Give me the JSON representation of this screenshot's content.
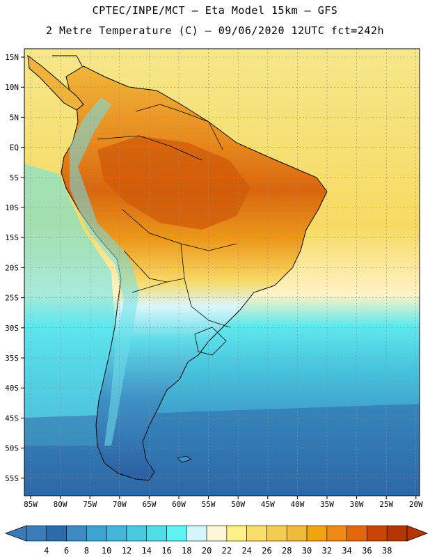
{
  "header": {
    "line1": "CPTEC/INPE/MCT –  Eta Model 15km – GFS",
    "line2": "2 Metre Temperature (C) – 09/06/2020 12UTC fct=242h"
  },
  "map": {
    "lat_labels": [
      "15N",
      "10N",
      "5N",
      "EQ",
      "5S",
      "10S",
      "15S",
      "20S",
      "25S",
      "30S",
      "35S",
      "40S",
      "45S",
      "50S",
      "55S"
    ],
    "lon_labels": [
      "85W",
      "80W",
      "75W",
      "70W",
      "65W",
      "60W",
      "55W",
      "50W",
      "45W",
      "40W",
      "35W",
      "30W",
      "25W",
      "20W"
    ]
  },
  "colorbar": {
    "ticks": [
      "4",
      "6",
      "8",
      "10",
      "12",
      "14",
      "16",
      "18",
      "20",
      "22",
      "24",
      "26",
      "28",
      "30",
      "32",
      "34",
      "36",
      "38"
    ],
    "colors": [
      "#3a7bb8",
      "#2e6aa8",
      "#3d8bc2",
      "#3fa3cf",
      "#45b6d8",
      "#4ac9df",
      "#50dde6",
      "#5ef2f2",
      "#d2f6fb",
      "#fff6d8",
      "#fff08a",
      "#f9df6a",
      "#f4cc52",
      "#efbb3a",
      "#f0a510",
      "#ef8a14",
      "#e2670f",
      "#c84507",
      "#b33604"
    ]
  }
}
